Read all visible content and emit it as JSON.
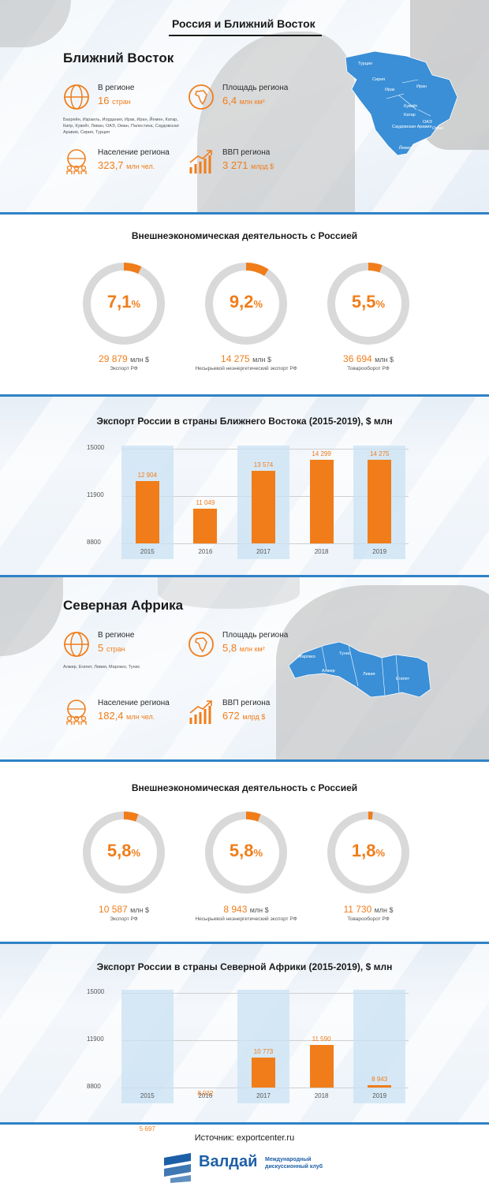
{
  "header": {
    "title": "Россия и Ближний Восток"
  },
  "middle_east": {
    "title": "Ближний Восток",
    "countries": {
      "label": "В регионе",
      "value": "16",
      "unit": "стран",
      "note": "Бахрейн, Израиль, Иордания, Ирак, Иран, Йемен, Катар, Кипр, Кувейт, Ливан, ОАЭ, Оман, Палестина, Саудовская Аравия, Сирия, Турция"
    },
    "area": {
      "label": "Площадь региона",
      "value": "6,4",
      "unit": "млн км²"
    },
    "population": {
      "label": "Население региона",
      "value": "323,7",
      "unit": "млн чел."
    },
    "gdp": {
      "label": "ВВП региона",
      "value": "3 271",
      "unit": "млрд $"
    },
    "map_labels": [
      "Турция",
      "Сирия",
      "Ирак",
      "Иран",
      "Кувейт",
      "Саудовская Аравия",
      "ОАЭ",
      "Оман",
      "Йемен",
      "Катар"
    ]
  },
  "middle_east_trade": {
    "title": "Внешнеэкономическая деятельность с Россией",
    "items": [
      {
        "pct": "7,1",
        "pct_sign": "%",
        "fraction": 0.071,
        "value": "29 879",
        "unit": "млн $",
        "label": "Экспорт РФ"
      },
      {
        "pct": "9,2",
        "pct_sign": "%",
        "fraction": 0.092,
        "value": "14 275",
        "unit": "млн $",
        "label": "Несырьевой неэнергетический экспорт РФ"
      },
      {
        "pct": "5,5",
        "pct_sign": "%",
        "fraction": 0.055,
        "value": "36 694",
        "unit": "млн $",
        "label": "Товарооборот РФ"
      }
    ]
  },
  "chart_data": [
    {
      "type": "bar",
      "title": "Экспорт России в страны Ближнего Востока (2015-2019), $ млн",
      "categories": [
        "2015",
        "2016",
        "2017",
        "2018",
        "2019"
      ],
      "values": [
        12904,
        11049,
        13574,
        14299,
        14275
      ],
      "labels": [
        "12 904",
        "11 049",
        "13 574",
        "14 299",
        "14 275"
      ],
      "yticks": [
        "15000",
        "11900",
        "8800"
      ],
      "ylim": [
        8800,
        15000
      ],
      "grid": true
    },
    {
      "type": "bar",
      "title": "Экспорт России в страны Северной Африки (2015-2019), $ млн",
      "categories": [
        "2015",
        "2016",
        "2017",
        "2018",
        "2019"
      ],
      "values": [
        5697,
        8032,
        10773,
        11590,
        8943
      ],
      "labels": [
        "5 697",
        "8 032",
        "10 773",
        "11 590",
        "8 943"
      ],
      "yticks": [
        "15000",
        "11900",
        "8800"
      ],
      "grid": true
    }
  ],
  "north_africa": {
    "title": "Северная Африка",
    "countries": {
      "label": "В регионе",
      "value": "5",
      "unit": "стран",
      "note": "Алжир, Египет, Ливия, Марокко, Тунис"
    },
    "area": {
      "label": "Площадь региона",
      "value": "5,8",
      "unit": "млн км²"
    },
    "population": {
      "label": "Население региона",
      "value": "182,4",
      "unit": "млн чел."
    },
    "gdp": {
      "label": "ВВП региона",
      "value": "672",
      "unit": "млрд $"
    },
    "map_labels": [
      "Марокко",
      "Тунис",
      "Алжир",
      "Ливия",
      "Египет"
    ]
  },
  "north_africa_trade": {
    "title": "Внешнеэкономическая деятельность с Россией",
    "items": [
      {
        "pct": "5,8",
        "pct_sign": "%",
        "fraction": 0.058,
        "value": "10 587",
        "unit": "млн $",
        "label": "Экспорт РФ"
      },
      {
        "pct": "5,8",
        "pct_sign": "%",
        "fraction": 0.058,
        "value": "8 943",
        "unit": "млн $",
        "label": "Несырьевой неэнергетический экспорт РФ"
      },
      {
        "pct": "1,8",
        "pct_sign": "%",
        "fraction": 0.018,
        "value": "11 730",
        "unit": "млн $",
        "label": "Товарооборот РФ"
      }
    ]
  },
  "footer": {
    "source": "Источник: exportcenter.ru",
    "logo_name": "Валдай",
    "logo_sub_1": "Международный",
    "logo_sub_2": "дискуссионный клуб"
  },
  "colors": {
    "accent": "#f07d1a",
    "brand": "#1d5fa6",
    "map_highlight": "#3a8fd6",
    "ring": "#d9d9d9"
  }
}
